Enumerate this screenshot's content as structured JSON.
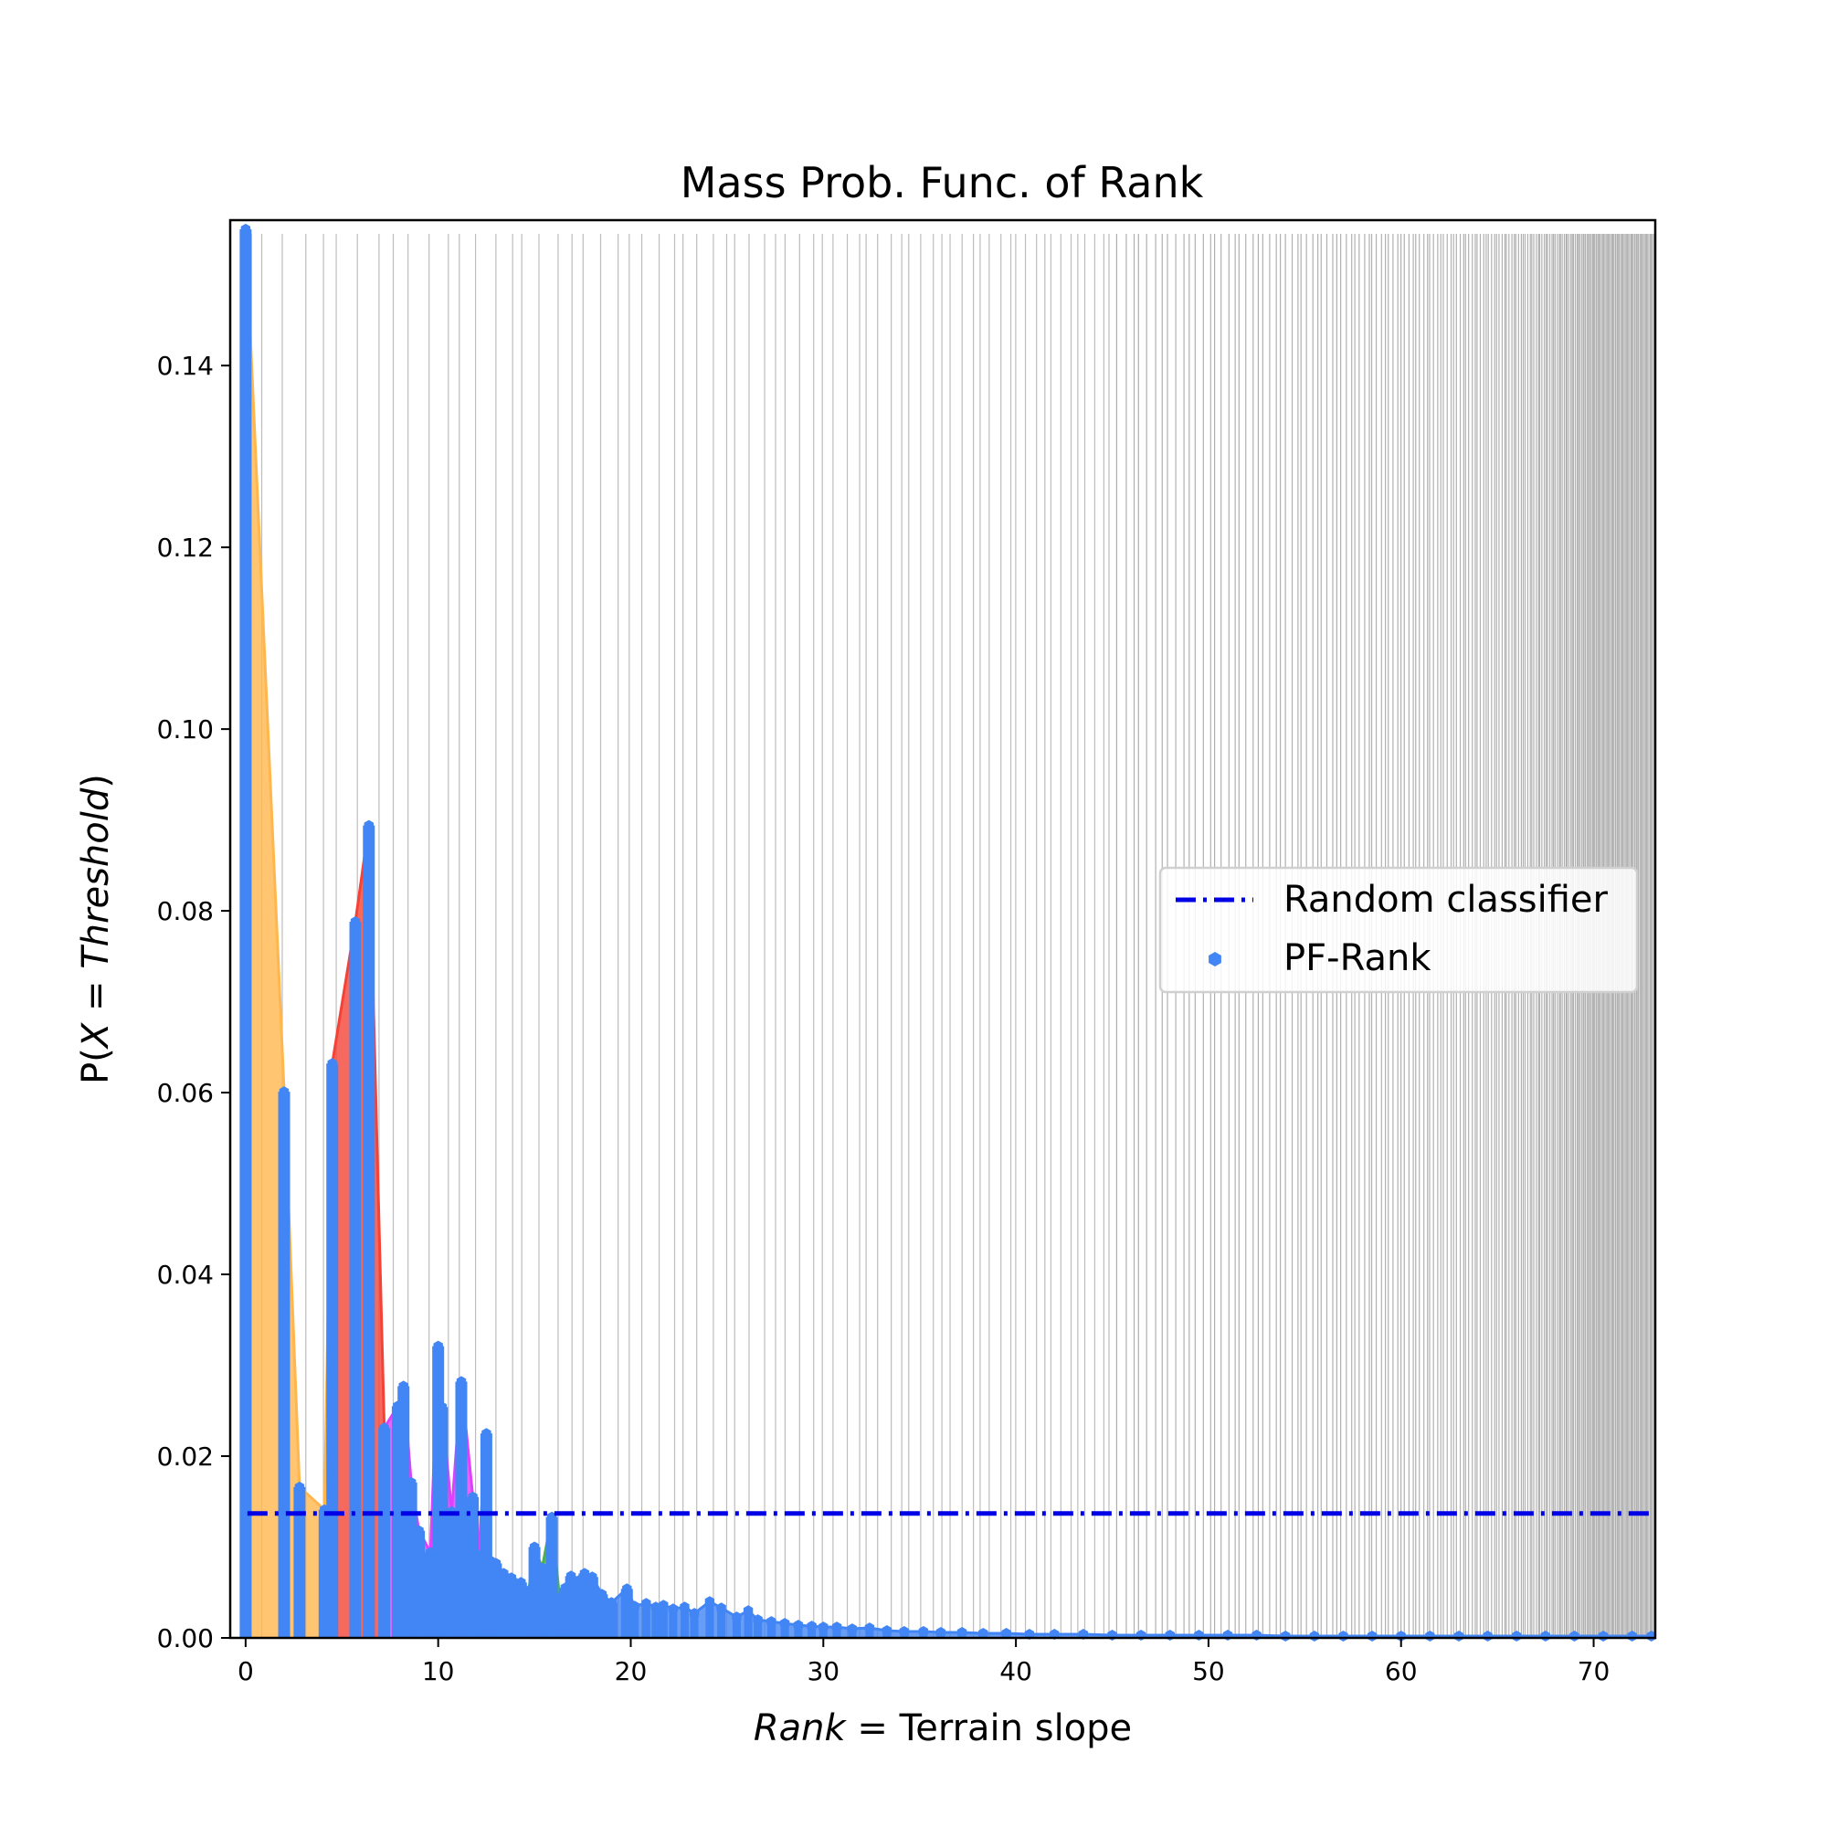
{
  "chart_data": {
    "type": "bar",
    "title": "Mass Prob. Func. of Rank",
    "xlabel_italic": "Rank",
    "xlabel_rest": " = Terrain slope",
    "ylabel_pre": "P(",
    "ylabel_italic": "X",
    "ylabel_mid": " = ",
    "ylabel_italic2": "Threshold",
    "ylabel_post": ")",
    "xlim": [
      -0.8,
      73.2
    ],
    "ylim": [
      0,
      0.156
    ],
    "xticks": [
      0,
      10,
      20,
      30,
      40,
      50,
      60,
      70
    ],
    "yticks": [
      0.0,
      0.02,
      0.04,
      0.06,
      0.08,
      0.1,
      0.12,
      0.14
    ],
    "xtick_labels": [
      "0",
      "10",
      "20",
      "30",
      "40",
      "50",
      "60",
      "70"
    ],
    "ytick_labels": [
      "0.00",
      "0.02",
      "0.04",
      "0.06",
      "0.08",
      "0.10",
      "0.12",
      "0.14"
    ],
    "grid": "vertical lines at each rank, denser toward higher ranks",
    "legend_position": "center-right",
    "random_classifier": 0.0137,
    "colors": {
      "bars": "#4285f4",
      "random_line": "#0000e6",
      "fill_orange": "#ffb74d",
      "fill_red": "#f44336",
      "fill_magenta": "#e040fb",
      "fill_green": "#4caf50",
      "grid": "#bdbdbd"
    },
    "legend": [
      {
        "label": "Random classifier",
        "style": "dashdot-line"
      },
      {
        "label": "PF-Rank",
        "style": "hexagon-marker"
      }
    ],
    "series": [
      {
        "name": "PF-Rank",
        "x": [
          0,
          2.0,
          2.8,
          4.1,
          4.5,
          5.7,
          6.4,
          7.2,
          7.9,
          8.2,
          8.6,
          9.0,
          9.6,
          10.0,
          10.2,
          10.7,
          11.2,
          11.8,
          12.1,
          12.5,
          12.7,
          13.0,
          13.4,
          13.8,
          14.3,
          14.7,
          15.0,
          15.4,
          15.9,
          16.3,
          16.6,
          16.9,
          17.3,
          17.6,
          18.0,
          18.5,
          19.0,
          19.8,
          20.2,
          20.8,
          21.3,
          21.7,
          22.2,
          22.8,
          23.3,
          24.1,
          24.7,
          25.5,
          26.1,
          26.6,
          27.3,
          28.0,
          28.7,
          29.4,
          30.0,
          30.7,
          31.5,
          32.4,
          33.3,
          34.2,
          35.2,
          36.1,
          37.2,
          38.3,
          39.5,
          40.7,
          42.0,
          43.5,
          45.0,
          46.5,
          48.0,
          49.5,
          51.0,
          52.5,
          54.0,
          55.5,
          57.0,
          58.5,
          60.0,
          61.5,
          63.0,
          64.5,
          66.0,
          67.5,
          69.0,
          70.5,
          72.0,
          73.0
        ],
        "y": [
          0.155,
          0.0601,
          0.0166,
          0.0141,
          0.0632,
          0.0788,
          0.0894,
          0.0231,
          0.0255,
          0.0277,
          0.0171,
          0.0118,
          0.0094,
          0.0321,
          0.0254,
          0.0139,
          0.0282,
          0.0155,
          0.0091,
          0.0225,
          0.0085,
          0.0082,
          0.0071,
          0.0066,
          0.0061,
          0.0052,
          0.01,
          0.0077,
          0.0133,
          0.0044,
          0.0055,
          0.0068,
          0.0063,
          0.0071,
          0.0067,
          0.0048,
          0.0039,
          0.0054,
          0.0035,
          0.0038,
          0.0034,
          0.0036,
          0.0032,
          0.0034,
          0.0027,
          0.004,
          0.0033,
          0.0023,
          0.003,
          0.002,
          0.0018,
          0.0016,
          0.0014,
          0.0013,
          0.0012,
          0.0012,
          0.001,
          0.0011,
          0.0008,
          0.0007,
          0.0007,
          0.0006,
          0.0006,
          0.0005,
          0.0005,
          0.0004,
          0.0004,
          0.0004,
          0.0003,
          0.0003,
          0.0003,
          0.0003,
          0.0003,
          0.0003,
          0.0002,
          0.0002,
          0.0002,
          0.0002,
          0.0002,
          0.0002,
          0.0002,
          0.0002,
          0.0002,
          0.0002,
          0.0002,
          0.0002,
          0.0002,
          0.0002
        ]
      }
    ]
  }
}
